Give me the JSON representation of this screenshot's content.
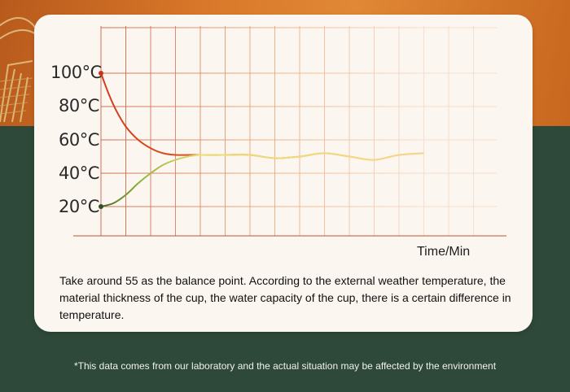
{
  "chart_data": {
    "type": "line",
    "xlabel": "Time/Min",
    "ylabel": "",
    "y_ticks": [
      "100°C",
      "80°C",
      "60°C",
      "40°C",
      "20°C"
    ],
    "ylim": [
      20,
      100
    ],
    "grid": true,
    "series": [
      {
        "color": "#d44a1e",
        "x": [
          0,
          0.3,
          0.6,
          1.0,
          1.5,
          2.0,
          2.5,
          3.0,
          4.0,
          5.0,
          6.0,
          7.0,
          8.0,
          9.0,
          10.0,
          11.0,
          12.0,
          13.0
        ],
        "values": [
          100,
          88,
          78,
          68,
          60,
          55,
          52,
          51,
          51,
          51,
          51,
          49,
          50,
          52,
          50,
          48,
          51,
          52
        ]
      },
      {
        "color": "#5a8a2a",
        "x": [
          0,
          0.5,
          1.0,
          1.5,
          2.0,
          2.5,
          3.0,
          3.5,
          4.0,
          5.0,
          6.0,
          7.0,
          8.0,
          9.0,
          10.0,
          11.0,
          12.0,
          13.0
        ],
        "values": [
          20,
          22,
          27,
          34,
          40,
          45,
          48,
          50,
          51,
          51,
          51,
          49,
          50,
          52,
          50,
          48,
          51,
          52
        ]
      }
    ]
  },
  "description": "Take around 55 as the balance point. According to the external weather temperature, the material thickness of the cup, the water capacity of the cup, there is a certain difference in temperature.",
  "footnote": "*This data comes from our laboratory and the actual situation may be affected by the environment"
}
